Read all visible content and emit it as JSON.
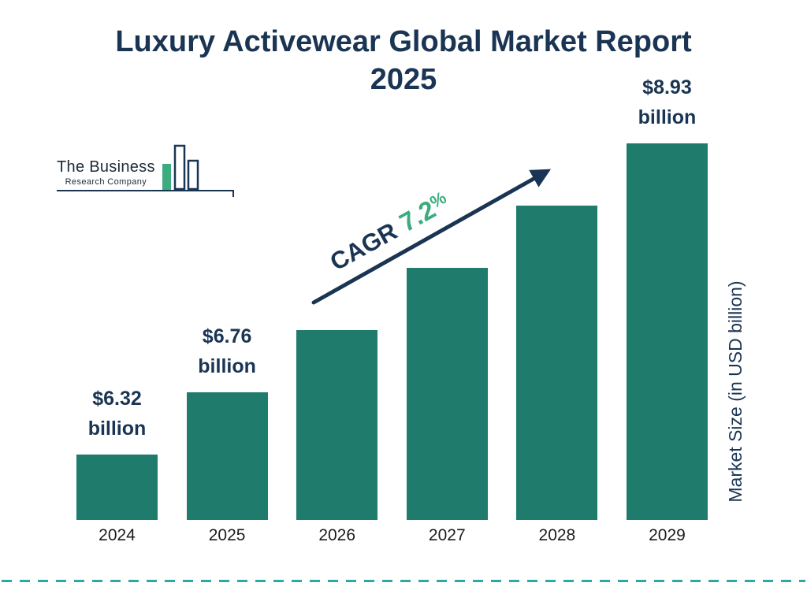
{
  "title": {
    "line1": "Luxury Activewear Global Market Report",
    "line2": "2025"
  },
  "logo": {
    "line1": "The Business",
    "line2": "Research Company"
  },
  "cagr": {
    "label": "CAGR",
    "value": "7.2",
    "percent": "%"
  },
  "y_axis": {
    "label": "Market Size (in USD billion)"
  },
  "colors": {
    "navy": "#1a3553",
    "green": "#3bac7e",
    "bar": "#1f7c6c",
    "dashed_line": "#2fa8a2"
  },
  "chart_data": {
    "type": "bar",
    "title": "Luxury Activewear Global Market Report 2025",
    "categories": [
      "2024",
      "2025",
      "2026",
      "2027",
      "2028",
      "2029"
    ],
    "values": [
      6.32,
      6.76,
      7.25,
      7.77,
      8.33,
      8.93
    ],
    "unit": "USD billion",
    "ylabel": "Market Size (in USD billion)",
    "xlabel": "",
    "cagr": "7.2%",
    "bar_color": "#1f7c6c",
    "legend": "none",
    "grid": "off",
    "value_labels": [
      {
        "index": 0,
        "line1": "$6.32",
        "line2": "billion"
      },
      {
        "index": 1,
        "line1": "$6.76",
        "line2": "billion"
      },
      {
        "index": 5,
        "line1": "$8.93",
        "line2": "billion"
      }
    ],
    "notes": "Only 2024, 2025 and 2029 bars carry data labels; 2026-2028 values estimated from the 7.2% CAGR. Bars drawn with equal visual increments (axis not to scale, no gridlines)."
  }
}
